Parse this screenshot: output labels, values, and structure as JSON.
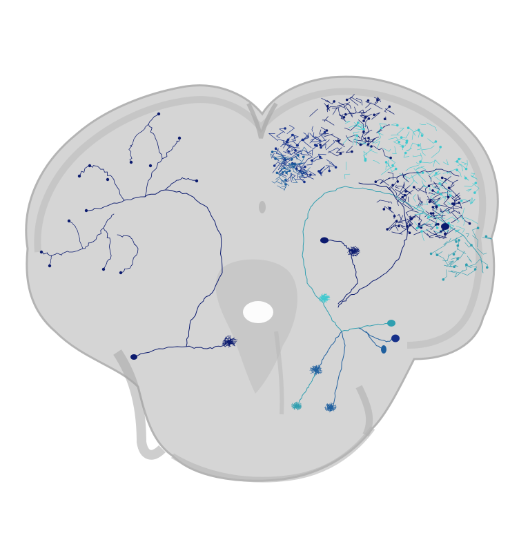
{
  "scene": {
    "background": "#ffffff",
    "subject": "brain-neuron-rendering",
    "colors": {
      "brain_fill": "#d3d3d3",
      "brain_shadow": "#b8b8b8",
      "brain_outline": "#a9a9a9",
      "neuron_navy": "#0b1a6e",
      "neuron_dark_blue": "#16308a",
      "neuron_mid_blue": "#1f5f9e",
      "neuron_teal": "#2f9fb0",
      "neuron_cyan": "#3ec9cf"
    },
    "neurons": [
      {
        "name": "left-hemisphere-navy-neuron",
        "color": "navy"
      },
      {
        "name": "right-dendritic-arbor-navy",
        "color": "navy"
      },
      {
        "name": "right-cyan-neuron",
        "color": "cyan"
      },
      {
        "name": "ventral-blue-cluster",
        "color": "mid_blue"
      },
      {
        "name": "central-navy-neuron",
        "color": "navy"
      }
    ]
  }
}
